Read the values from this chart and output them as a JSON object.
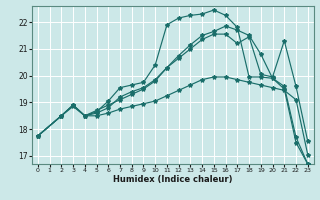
{
  "xlabel": "Humidex (Indice chaleur)",
  "bg_color": "#cce8e8",
  "line_color": "#1a6e6a",
  "grid_color": "#ffffff",
  "xlim": [
    -0.5,
    23.5
  ],
  "ylim": [
    16.7,
    22.6
  ],
  "xticks": [
    0,
    1,
    2,
    3,
    4,
    5,
    6,
    7,
    8,
    9,
    10,
    11,
    12,
    13,
    14,
    15,
    16,
    17,
    18,
    19,
    20,
    21,
    22,
    23
  ],
  "yticks": [
    17,
    18,
    19,
    20,
    21,
    22
  ],
  "lines": [
    {
      "x": [
        0,
        2,
        3,
        4,
        5,
        6,
        7,
        8,
        9,
        10,
        11,
        12,
        13,
        14,
        15,
        16,
        17,
        18,
        19,
        20,
        21,
        22,
        23
      ],
      "y": [
        17.75,
        18.5,
        18.9,
        18.5,
        18.65,
        19.05,
        19.55,
        19.65,
        19.75,
        20.4,
        21.9,
        22.15,
        22.25,
        22.3,
        22.45,
        22.25,
        21.8,
        19.95,
        19.95,
        19.9,
        19.6,
        17.7,
        16.7
      ]
    },
    {
      "x": [
        0,
        2,
        3,
        4,
        5,
        6,
        7,
        8,
        9,
        10,
        11,
        12,
        13,
        14,
        15,
        16,
        17,
        18,
        19,
        20,
        21,
        22,
        23
      ],
      "y": [
        17.75,
        18.5,
        18.9,
        18.5,
        18.7,
        18.9,
        19.1,
        19.3,
        19.5,
        19.8,
        20.3,
        20.65,
        21.0,
        21.35,
        21.55,
        21.55,
        21.2,
        21.45,
        20.05,
        19.95,
        21.3,
        19.6,
        17.55
      ]
    },
    {
      "x": [
        0,
        2,
        3,
        4,
        5,
        6,
        7,
        8,
        9,
        10,
        11,
        12,
        13,
        14,
        15,
        16,
        17,
        18,
        19,
        20,
        21,
        22,
        23
      ],
      "y": [
        17.75,
        18.5,
        18.9,
        18.5,
        18.6,
        18.8,
        19.2,
        19.4,
        19.55,
        19.85,
        20.3,
        20.75,
        21.15,
        21.5,
        21.65,
        21.85,
        21.7,
        21.5,
        20.8,
        19.9,
        19.5,
        17.5,
        16.7
      ]
    },
    {
      "x": [
        0,
        2,
        3,
        4,
        5,
        6,
        7,
        8,
        9,
        10,
        11,
        12,
        13,
        14,
        15,
        16,
        17,
        18,
        19,
        20,
        21,
        22,
        23
      ],
      "y": [
        17.75,
        18.5,
        18.85,
        18.5,
        18.5,
        18.6,
        18.75,
        18.85,
        18.95,
        19.05,
        19.25,
        19.45,
        19.65,
        19.85,
        19.95,
        19.95,
        19.85,
        19.75,
        19.65,
        19.55,
        19.45,
        19.1,
        17.05
      ]
    }
  ]
}
